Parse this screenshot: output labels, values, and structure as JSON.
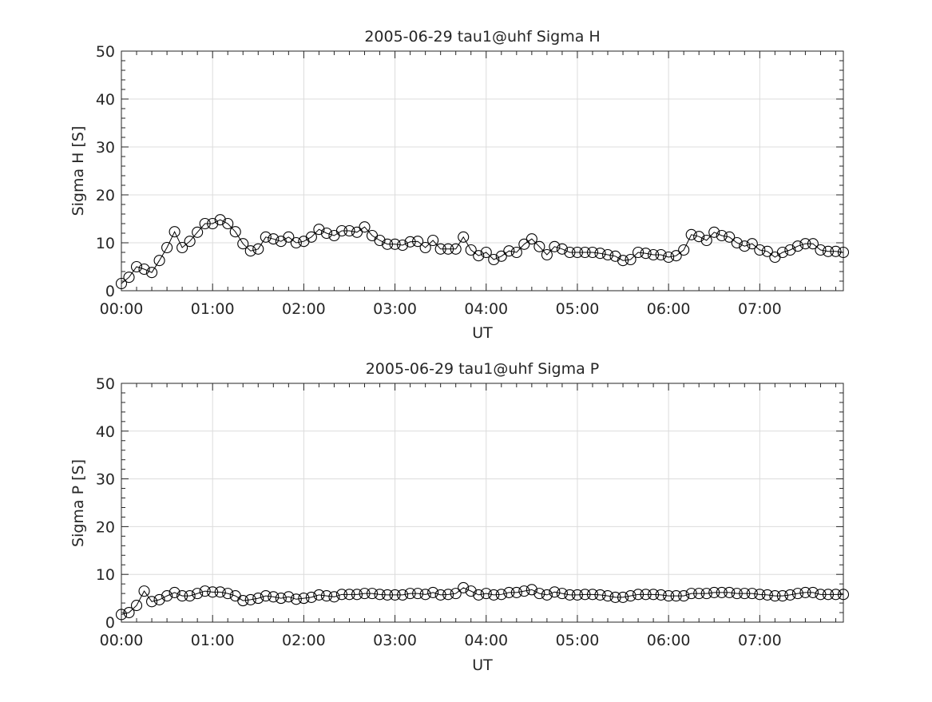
{
  "chart_data": [
    {
      "type": "line",
      "title": "2005-06-29  tau1@uhf Sigma H",
      "xlabel": "UT",
      "ylabel": "Sigma H [S]",
      "ylim": [
        0,
        50
      ],
      "xlim_minutes": [
        0,
        475
      ],
      "grid": true,
      "marker": "open-circle",
      "yticks": [
        "0",
        "10",
        "20",
        "30",
        "40",
        "50"
      ],
      "xticks": [
        "00:00",
        "01:00",
        "02:00",
        "03:00",
        "04:00",
        "05:00",
        "06:00",
        "07:00"
      ],
      "x_step_minutes": 5,
      "values": [
        1.5,
        2.8,
        5,
        4.5,
        3.8,
        6.3,
        9,
        12.3,
        9,
        10.3,
        12.2,
        14,
        14,
        14.8,
        14,
        12.3,
        9.8,
        8.3,
        8.7,
        11.2,
        10.8,
        10.3,
        11.2,
        10,
        10.3,
        11.2,
        12.8,
        12,
        11.5,
        12.5,
        12.5,
        12.2,
        13.3,
        11.5,
        10.5,
        9.7,
        9.7,
        9.5,
        10.2,
        10.3,
        9,
        10.5,
        8.7,
        8.7,
        8.7,
        11.2,
        8.5,
        7.3,
        8,
        6.5,
        7.2,
        8.3,
        8,
        9.7,
        10.8,
        9.2,
        7.5,
        9.2,
        8.7,
        8,
        8,
        8,
        8,
        7.8,
        7.5,
        7.2,
        6.3,
        6.5,
        8,
        7.8,
        7.5,
        7.5,
        7,
        7.3,
        8.5,
        11.7,
        11.3,
        10.5,
        12.2,
        11.5,
        11.2,
        10,
        9.3,
        9.8,
        8.5,
        8.2,
        7,
        8,
        8.5,
        9.3,
        9.8,
        9.8,
        8.5,
        8.2,
        8.2,
        8
      ]
    },
    {
      "type": "line",
      "title": "2005-06-29  tau1@uhf Sigma P",
      "xlabel": "UT",
      "ylabel": "Sigma P [S]",
      "ylim": [
        0,
        50
      ],
      "xlim_minutes": [
        0,
        475
      ],
      "grid": true,
      "marker": "open-circle",
      "yticks": [
        "0",
        "10",
        "20",
        "30",
        "40",
        "50"
      ],
      "xticks": [
        "00:00",
        "01:00",
        "02:00",
        "03:00",
        "04:00",
        "05:00",
        "06:00",
        "07:00"
      ],
      "x_step_minutes": 5,
      "values": [
        1.6,
        2.0,
        3.5,
        6.5,
        4.3,
        4.7,
        5.5,
        6.2,
        5.5,
        5.5,
        6,
        6.5,
        6.3,
        6.3,
        6,
        5.5,
        4.5,
        4.7,
        5,
        5.5,
        5.3,
        5,
        5.3,
        4.8,
        5,
        5.2,
        5.7,
        5.5,
        5.3,
        5.8,
        5.8,
        5.8,
        6,
        6,
        5.8,
        5.7,
        5.7,
        5.7,
        6,
        6,
        5.8,
        6.2,
        5.7,
        5.8,
        6,
        7.2,
        6.5,
        5.7,
        6,
        5.7,
        5.8,
        6.2,
        6.2,
        6.5,
        6.8,
        6,
        5.7,
        6.3,
        6,
        5.7,
        5.7,
        5.8,
        5.8,
        5.7,
        5.5,
        5.2,
        5.2,
        5.5,
        5.8,
        5.8,
        5.8,
        5.7,
        5.5,
        5.5,
        5.5,
        6,
        6,
        6,
        6.2,
        6.2,
        6.2,
        6,
        6,
        6,
        5.8,
        5.7,
        5.5,
        5.5,
        5.7,
        6,
        6.2,
        6.2,
        5.8,
        5.8,
        5.8,
        5.8
      ]
    }
  ]
}
